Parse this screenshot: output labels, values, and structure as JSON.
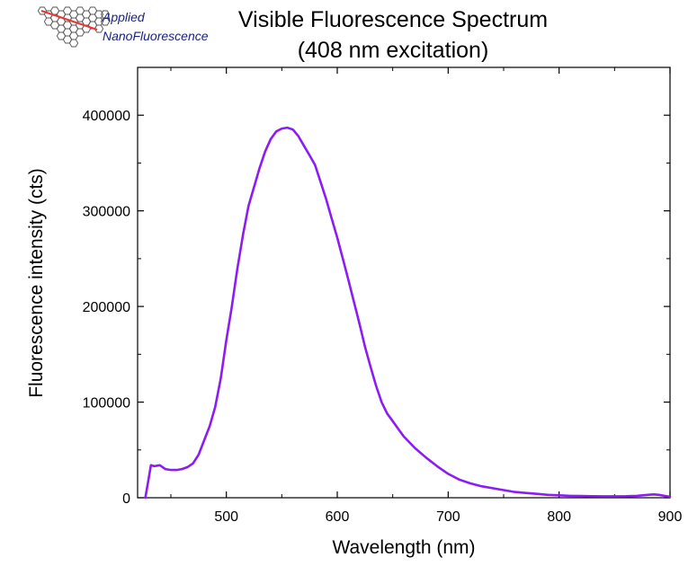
{
  "logo": {
    "line1": "Applied",
    "line2": "NanoFluorescence",
    "text_color": "#1a237e",
    "hex_color": "#555555",
    "stripe_color": "#e53935"
  },
  "chart_data": {
    "type": "line",
    "title": "Visible Fluorescence Spectrum",
    "subtitle": "(408 nm excitation)",
    "xlabel": "Wavelength (nm)",
    "ylabel": "Fluorescence intensity (cts)",
    "xlim": [
      420,
      900
    ],
    "ylim": [
      0,
      450000
    ],
    "x_ticks": [
      500,
      600,
      700,
      800,
      900
    ],
    "y_ticks": [
      0,
      100000,
      200000,
      300000,
      400000
    ],
    "grid": false,
    "legend": "none",
    "series": [
      {
        "color": "#8b1cf5",
        "x": [
          427,
          430,
          432,
          435,
          440,
          445,
          450,
          455,
          460,
          465,
          470,
          475,
          480,
          485,
          490,
          495,
          500,
          505,
          510,
          515,
          520,
          525,
          530,
          535,
          540,
          545,
          550,
          555,
          560,
          565,
          570,
          575,
          580,
          585,
          590,
          595,
          600,
          605,
          610,
          615,
          620,
          625,
          630,
          635,
          640,
          645,
          650,
          655,
          660,
          670,
          680,
          690,
          700,
          710,
          720,
          730,
          740,
          750,
          760,
          770,
          780,
          790,
          800,
          810,
          820,
          830,
          840,
          850,
          860,
          870,
          880,
          885,
          890,
          895,
          900
        ],
        "values": [
          0,
          20000,
          34000,
          33000,
          34000,
          30000,
          29000,
          29000,
          30000,
          32000,
          36000,
          45000,
          60000,
          75000,
          95000,
          125000,
          165000,
          200000,
          240000,
          275000,
          305000,
          325000,
          345000,
          362000,
          375000,
          383000,
          386000,
          387000,
          385000,
          378000,
          368000,
          358000,
          348000,
          330000,
          312000,
          292000,
          272000,
          250000,
          228000,
          205000,
          182000,
          158000,
          137000,
          117000,
          100000,
          88000,
          80000,
          72000,
          64000,
          52000,
          42000,
          33000,
          25000,
          19000,
          15000,
          12000,
          10000,
          8000,
          6000,
          5000,
          4000,
          3000,
          2500,
          2000,
          1800,
          1600,
          1500,
          1500,
          1600,
          2000,
          3000,
          3500,
          3000,
          2000,
          1000
        ]
      }
    ]
  }
}
